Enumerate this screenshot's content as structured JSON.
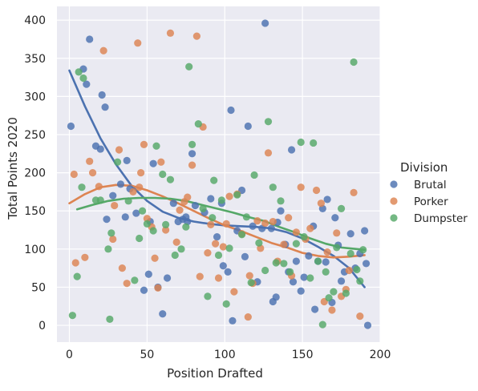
{
  "chart_data": {
    "type": "scatter",
    "title": "",
    "xlabel": "Position Drafted",
    "ylabel": "Total Points 2020",
    "xlim": [
      -8,
      200
    ],
    "ylim": [
      -22,
      418
    ],
    "xticks": [
      0,
      50,
      100,
      150,
      200
    ],
    "yticks": [
      0,
      50,
      100,
      150,
      200,
      250,
      300,
      350,
      400
    ],
    "grid": true,
    "legend": {
      "title": "Division",
      "placement": "right"
    },
    "series": [
      {
        "name": "Brutal",
        "color": "#4c72b0",
        "points": [
          [
            1,
            261
          ],
          [
            9,
            336
          ],
          [
            11,
            316
          ],
          [
            13,
            375
          ],
          [
            17,
            235
          ],
          [
            20,
            231
          ],
          [
            21,
            302
          ],
          [
            23,
            286
          ],
          [
            24,
            139
          ],
          [
            28,
            170
          ],
          [
            33,
            185
          ],
          [
            36,
            142
          ],
          [
            37,
            216
          ],
          [
            39,
            179
          ],
          [
            43,
            147
          ],
          [
            48,
            46
          ],
          [
            51,
            67
          ],
          [
            52,
            136
          ],
          [
            54,
            212
          ],
          [
            57,
            50
          ],
          [
            60,
            15
          ],
          [
            63,
            62
          ],
          [
            67,
            160
          ],
          [
            70,
            136
          ],
          [
            73,
            139
          ],
          [
            75,
            142
          ],
          [
            76,
            136
          ],
          [
            79,
            225
          ],
          [
            81,
            157
          ],
          [
            87,
            148
          ],
          [
            91,
            166
          ],
          [
            95,
            116
          ],
          [
            98,
            160
          ],
          [
            99,
            78
          ],
          [
            102,
            70
          ],
          [
            104,
            282
          ],
          [
            105,
            6
          ],
          [
            108,
            124
          ],
          [
            111,
            177
          ],
          [
            113,
            90
          ],
          [
            115,
            261
          ],
          [
            118,
            130
          ],
          [
            121,
            57
          ],
          [
            124,
            127
          ],
          [
            126,
            396
          ],
          [
            130,
            127
          ],
          [
            131,
            31
          ],
          [
            133,
            37
          ],
          [
            134,
            135
          ],
          [
            136,
            150
          ],
          [
            139,
            106
          ],
          [
            141,
            70
          ],
          [
            143,
            230
          ],
          [
            144,
            57
          ],
          [
            146,
            84
          ],
          [
            149,
            45
          ],
          [
            151,
            63
          ],
          [
            154,
            91
          ],
          [
            157,
            130
          ],
          [
            158,
            21
          ],
          [
            160,
            84
          ],
          [
            163,
            153
          ],
          [
            165,
            83
          ],
          [
            166,
            165
          ],
          [
            169,
            30
          ],
          [
            171,
            141
          ],
          [
            173,
            105
          ],
          [
            175,
            58
          ],
          [
            177,
            70
          ],
          [
            181,
            120
          ],
          [
            184,
            75
          ],
          [
            187,
            94
          ],
          [
            190,
            124
          ],
          [
            191,
            81
          ],
          [
            192,
            0
          ]
        ],
        "fit": [
          [
            0,
            334
          ],
          [
            10,
            287
          ],
          [
            20,
            245
          ],
          [
            30,
            211
          ],
          [
            40,
            183
          ],
          [
            50,
            163
          ],
          [
            60,
            149
          ],
          [
            70,
            141
          ],
          [
            80,
            136
          ],
          [
            90,
            133
          ],
          [
            100,
            131
          ],
          [
            110,
            130
          ],
          [
            120,
            129
          ],
          [
            130,
            127
          ],
          [
            140,
            122
          ],
          [
            150,
            114
          ],
          [
            160,
            103
          ],
          [
            170,
            91
          ],
          [
            180,
            75
          ],
          [
            190,
            50
          ]
        ]
      },
      {
        "name": "Porker",
        "color": "#dd8452",
        "points": [
          [
            3,
            198
          ],
          [
            4,
            82
          ],
          [
            10,
            89
          ],
          [
            13,
            215
          ],
          [
            15,
            200
          ],
          [
            19,
            182
          ],
          [
            22,
            360
          ],
          [
            28,
            113
          ],
          [
            29,
            157
          ],
          [
            32,
            230
          ],
          [
            34,
            75
          ],
          [
            37,
            55
          ],
          [
            41,
            175
          ],
          [
            44,
            370
          ],
          [
            45,
            181
          ],
          [
            46,
            200
          ],
          [
            48,
            237
          ],
          [
            50,
            140
          ],
          [
            53,
            129
          ],
          [
            55,
            88
          ],
          [
            57,
            49
          ],
          [
            59,
            214
          ],
          [
            62,
            125
          ],
          [
            65,
            383
          ],
          [
            69,
            109
          ],
          [
            71,
            151
          ],
          [
            74,
            162
          ],
          [
            76,
            168
          ],
          [
            79,
            210
          ],
          [
            82,
            379
          ],
          [
            84,
            64
          ],
          [
            86,
            260
          ],
          [
            89,
            95
          ],
          [
            91,
            132
          ],
          [
            94,
            107
          ],
          [
            96,
            62
          ],
          [
            99,
            103
          ],
          [
            101,
            133
          ],
          [
            103,
            169
          ],
          [
            106,
            44
          ],
          [
            108,
            172
          ],
          [
            111,
            120
          ],
          [
            115,
            11
          ],
          [
            116,
            65
          ],
          [
            118,
            55
          ],
          [
            121,
            137
          ],
          [
            123,
            101
          ],
          [
            126,
            134
          ],
          [
            128,
            226
          ],
          [
            131,
            136
          ],
          [
            134,
            84
          ],
          [
            138,
            106
          ],
          [
            141,
            141
          ],
          [
            143,
            65
          ],
          [
            146,
            122
          ],
          [
            149,
            181
          ],
          [
            152,
            113
          ],
          [
            155,
            127
          ],
          [
            159,
            177
          ],
          [
            162,
            160
          ],
          [
            164,
            31
          ],
          [
            166,
            96
          ],
          [
            169,
            20
          ],
          [
            172,
            121
          ],
          [
            175,
            38
          ],
          [
            178,
            47
          ],
          [
            180,
            72
          ],
          [
            183,
            174
          ],
          [
            187,
            12
          ]
        ],
        "fit": [
          [
            0,
            160
          ],
          [
            10,
            172
          ],
          [
            20,
            181
          ],
          [
            30,
            184
          ],
          [
            40,
            183
          ],
          [
            50,
            177
          ],
          [
            60,
            169
          ],
          [
            70,
            160
          ],
          [
            80,
            150
          ],
          [
            90,
            140
          ],
          [
            100,
            131
          ],
          [
            110,
            124
          ],
          [
            120,
            116
          ],
          [
            130,
            108
          ],
          [
            140,
            102
          ],
          [
            150,
            95
          ],
          [
            160,
            91
          ],
          [
            170,
            89
          ],
          [
            180,
            90
          ],
          [
            190,
            92
          ]
        ]
      },
      {
        "name": "Dumpster",
        "color": "#55a868",
        "points": [
          [
            2,
            13
          ],
          [
            5,
            64
          ],
          [
            6,
            332
          ],
          [
            8,
            181
          ],
          [
            9,
            324
          ],
          [
            17,
            164
          ],
          [
            20,
            164
          ],
          [
            25,
            100
          ],
          [
            26,
            8
          ],
          [
            27,
            121
          ],
          [
            31,
            214
          ],
          [
            38,
            163
          ],
          [
            42,
            59
          ],
          [
            45,
            114
          ],
          [
            47,
            150
          ],
          [
            50,
            133
          ],
          [
            54,
            124
          ],
          [
            56,
            235
          ],
          [
            60,
            198
          ],
          [
            62,
            132
          ],
          [
            65,
            191
          ],
          [
            68,
            92
          ],
          [
            72,
            100
          ],
          [
            75,
            129
          ],
          [
            77,
            339
          ],
          [
            79,
            237
          ],
          [
            83,
            264
          ],
          [
            86,
            153
          ],
          [
            89,
            38
          ],
          [
            92,
            141
          ],
          [
            93,
            190
          ],
          [
            96,
            92
          ],
          [
            98,
            164
          ],
          [
            101,
            28
          ],
          [
            103,
            101
          ],
          [
            108,
            171
          ],
          [
            111,
            119
          ],
          [
            114,
            142
          ],
          [
            117,
            56
          ],
          [
            119,
            197
          ],
          [
            122,
            108
          ],
          [
            126,
            72
          ],
          [
            128,
            267
          ],
          [
            131,
            181
          ],
          [
            133,
            82
          ],
          [
            136,
            163
          ],
          [
            138,
            81
          ],
          [
            142,
            70
          ],
          [
            146,
            107
          ],
          [
            149,
            240
          ],
          [
            151,
            116
          ],
          [
            155,
            62
          ],
          [
            157,
            239
          ],
          [
            160,
            84
          ],
          [
            163,
            1
          ],
          [
            165,
            70
          ],
          [
            167,
            36
          ],
          [
            170,
            44
          ],
          [
            172,
            102
          ],
          [
            175,
            153
          ],
          [
            178,
            42
          ],
          [
            181,
            94
          ],
          [
            183,
            345
          ],
          [
            185,
            73
          ],
          [
            187,
            58
          ],
          [
            189,
            99
          ]
        ],
        "fit": [
          [
            5,
            152
          ],
          [
            15,
            158
          ],
          [
            25,
            163
          ],
          [
            35,
            166
          ],
          [
            45,
            167
          ],
          [
            55,
            167
          ],
          [
            65,
            166
          ],
          [
            75,
            163
          ],
          [
            85,
            158
          ],
          [
            95,
            153
          ],
          [
            105,
            148
          ],
          [
            115,
            142
          ],
          [
            125,
            137
          ],
          [
            135,
            129
          ],
          [
            145,
            122
          ],
          [
            155,
            114
          ],
          [
            165,
            107
          ],
          [
            175,
            102
          ],
          [
            185,
            100
          ],
          [
            190,
            99
          ]
        ]
      }
    ]
  }
}
